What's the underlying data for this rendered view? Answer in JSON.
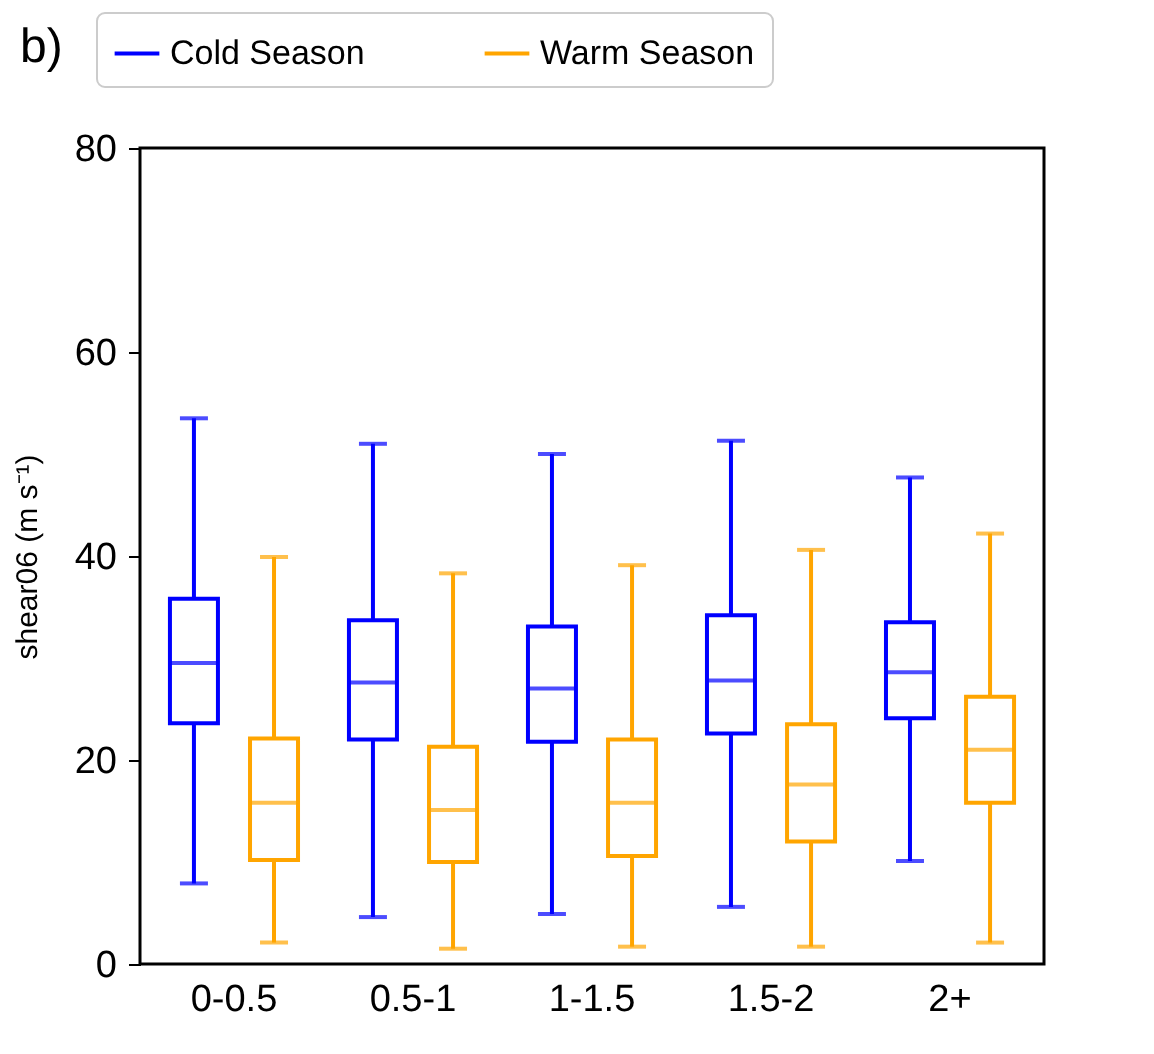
{
  "chart_data": {
    "type": "box",
    "title": "b)",
    "ylabel": "shear06 (m s⁻¹)",
    "categories": [
      "0-0.5",
      "0.5-1",
      "1-1.5",
      "1.5-2",
      "2+"
    ],
    "ylim": [
      0,
      80
    ],
    "yticks": [
      0,
      20,
      40,
      60,
      80
    ],
    "grid": false,
    "legend": "top",
    "series": [
      {
        "name": "Cold Season",
        "color": "#0000ff",
        "boxes": [
          {
            "low": 7.9,
            "q1": 23.6,
            "median": 29.5,
            "q3": 35.8,
            "high": 53.5
          },
          {
            "low": 4.6,
            "q1": 22.0,
            "median": 27.6,
            "q3": 33.7,
            "high": 51.0
          },
          {
            "low": 4.9,
            "q1": 21.8,
            "median": 27.0,
            "q3": 33.1,
            "high": 50.0
          },
          {
            "low": 5.6,
            "q1": 22.6,
            "median": 27.8,
            "q3": 34.2,
            "high": 51.3
          },
          {
            "low": 10.1,
            "q1": 24.1,
            "median": 28.6,
            "q3": 33.5,
            "high": 47.7
          }
        ]
      },
      {
        "name": "Warm Season",
        "color": "#ffa500",
        "boxes": [
          {
            "low": 2.1,
            "q1": 10.2,
            "median": 15.8,
            "q3": 22.1,
            "high": 39.9
          },
          {
            "low": 1.5,
            "q1": 10.0,
            "median": 15.1,
            "q3": 21.3,
            "high": 38.3
          },
          {
            "low": 1.7,
            "q1": 10.6,
            "median": 15.8,
            "q3": 22.0,
            "high": 39.1
          },
          {
            "low": 1.7,
            "q1": 12.0,
            "median": 17.6,
            "q3": 23.5,
            "high": 40.6
          },
          {
            "low": 2.1,
            "q1": 15.8,
            "median": 21.0,
            "q3": 26.2,
            "high": 42.2
          }
        ]
      }
    ]
  }
}
